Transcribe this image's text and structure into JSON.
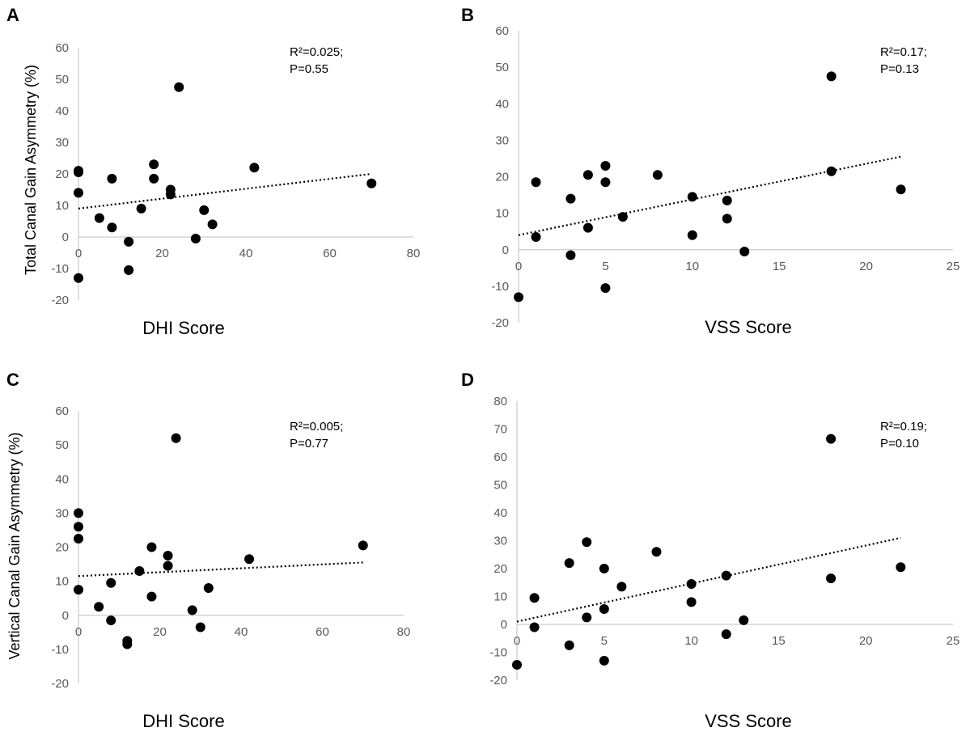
{
  "chart_data": [
    {
      "type": "scatter",
      "panel": "A",
      "xlabel": "DHI Score",
      "ylabel": "Total Canal Gain Asymmetry (%)",
      "xlim": [
        0,
        80
      ],
      "ylim": [
        -20,
        60
      ],
      "xticks": [
        0,
        20,
        40,
        60,
        80
      ],
      "yticks": [
        -20,
        -10,
        0,
        10,
        20,
        30,
        40,
        50,
        60
      ],
      "annotation": [
        "R²=0.025;",
        "P=0.55"
      ],
      "points": [
        {
          "x": 0,
          "y": 21
        },
        {
          "x": 0,
          "y": 20.5
        },
        {
          "x": 0,
          "y": 14
        },
        {
          "x": 0,
          "y": -13
        },
        {
          "x": 5,
          "y": 6
        },
        {
          "x": 8,
          "y": 18.5
        },
        {
          "x": 8,
          "y": 3
        },
        {
          "x": 12,
          "y": -1.5
        },
        {
          "x": 12,
          "y": -10.5
        },
        {
          "x": 15,
          "y": 9
        },
        {
          "x": 18,
          "y": 23
        },
        {
          "x": 18,
          "y": 18.5
        },
        {
          "x": 22,
          "y": 15
        },
        {
          "x": 22,
          "y": 13.5
        },
        {
          "x": 24,
          "y": 47.5
        },
        {
          "x": 28,
          "y": -0.5
        },
        {
          "x": 30,
          "y": 8.5
        },
        {
          "x": 32,
          "y": 4
        },
        {
          "x": 42,
          "y": 22
        },
        {
          "x": 70,
          "y": 17
        }
      ],
      "trendline": {
        "x": [
          0,
          70
        ],
        "y": [
          9,
          20
        ]
      }
    },
    {
      "type": "scatter",
      "panel": "B",
      "xlabel": "VSS Score",
      "ylabel": "",
      "xlim": [
        0,
        25
      ],
      "ylim": [
        -20,
        60
      ],
      "xticks": [
        0,
        5,
        10,
        15,
        20,
        25
      ],
      "yticks": [
        -20,
        -10,
        0,
        10,
        20,
        30,
        40,
        50,
        60
      ],
      "annotation": [
        "R²=0.17;",
        "P=0.13"
      ],
      "points": [
        {
          "x": 0,
          "y": -13
        },
        {
          "x": 1,
          "y": 18.5
        },
        {
          "x": 1,
          "y": 3.5
        },
        {
          "x": 3,
          "y": 14
        },
        {
          "x": 3,
          "y": -1.5
        },
        {
          "x": 4,
          "y": 20.5
        },
        {
          "x": 4,
          "y": 6
        },
        {
          "x": 5,
          "y": 23
        },
        {
          "x": 5,
          "y": 18.5
        },
        {
          "x": 5,
          "y": -10.5
        },
        {
          "x": 6,
          "y": 9
        },
        {
          "x": 8,
          "y": 20.5
        },
        {
          "x": 10,
          "y": 14.5
        },
        {
          "x": 10,
          "y": 4
        },
        {
          "x": 12,
          "y": 13.5
        },
        {
          "x": 12,
          "y": 8.5
        },
        {
          "x": 13,
          "y": -0.5
        },
        {
          "x": 18,
          "y": 47.5
        },
        {
          "x": 18,
          "y": 21.5
        },
        {
          "x": 22,
          "y": 16.5
        }
      ],
      "trendline": {
        "x": [
          0,
          22
        ],
        "y": [
          4,
          25.5
        ]
      }
    },
    {
      "type": "scatter",
      "panel": "C",
      "xlabel": "DHI Score",
      "ylabel": "Vertical Canal Gain Asymmetry (%)",
      "xlim": [
        0,
        80
      ],
      "ylim": [
        -20,
        60
      ],
      "xticks": [
        0,
        20,
        40,
        60,
        80
      ],
      "yticks": [
        -20,
        -10,
        0,
        10,
        20,
        30,
        40,
        50,
        60
      ],
      "annotation": [
        "R²=0.005;",
        "P=0.77"
      ],
      "points": [
        {
          "x": 0,
          "y": 30
        },
        {
          "x": 0,
          "y": 26
        },
        {
          "x": 0,
          "y": 22.5
        },
        {
          "x": 0,
          "y": 7.5
        },
        {
          "x": 5,
          "y": 2.5
        },
        {
          "x": 8,
          "y": 9.5
        },
        {
          "x": 8,
          "y": -1.5
        },
        {
          "x": 12,
          "y": -7.5
        },
        {
          "x": 12,
          "y": -8.5
        },
        {
          "x": 15,
          "y": 13
        },
        {
          "x": 18,
          "y": 20
        },
        {
          "x": 18,
          "y": 5.5
        },
        {
          "x": 22,
          "y": 17.5
        },
        {
          "x": 22,
          "y": 14.5
        },
        {
          "x": 24,
          "y": 52
        },
        {
          "x": 28,
          "y": 1.5
        },
        {
          "x": 30,
          "y": -3.5
        },
        {
          "x": 32,
          "y": 8
        },
        {
          "x": 42,
          "y": 16.5
        },
        {
          "x": 70,
          "y": 20.5
        }
      ],
      "trendline": {
        "x": [
          0,
          70
        ],
        "y": [
          11.5,
          15.5
        ]
      }
    },
    {
      "type": "scatter",
      "panel": "D",
      "xlabel": "VSS Score",
      "ylabel": "",
      "xlim": [
        0,
        25
      ],
      "ylim": [
        -20,
        80
      ],
      "xticks": [
        0,
        5,
        10,
        15,
        20,
        25
      ],
      "yticks": [
        -20,
        -10,
        0,
        10,
        20,
        30,
        40,
        50,
        60,
        70,
        80
      ],
      "annotation": [
        "R²=0.19;",
        "P=0.10"
      ],
      "points": [
        {
          "x": 0,
          "y": -14.5
        },
        {
          "x": 1,
          "y": 9.5
        },
        {
          "x": 1,
          "y": -1
        },
        {
          "x": 3,
          "y": 22
        },
        {
          "x": 3,
          "y": -7.5
        },
        {
          "x": 4,
          "y": 29.5
        },
        {
          "x": 4,
          "y": 2.5
        },
        {
          "x": 5,
          "y": 20
        },
        {
          "x": 5,
          "y": 5.5
        },
        {
          "x": 5,
          "y": -13
        },
        {
          "x": 6,
          "y": 13.5
        },
        {
          "x": 8,
          "y": 26
        },
        {
          "x": 10,
          "y": 14.5
        },
        {
          "x": 10,
          "y": 8
        },
        {
          "x": 12,
          "y": 17.5
        },
        {
          "x": 12,
          "y": -3.5
        },
        {
          "x": 13,
          "y": 1.5
        },
        {
          "x": 18,
          "y": 66.5
        },
        {
          "x": 18,
          "y": 16.5
        },
        {
          "x": 22,
          "y": 20.5
        }
      ],
      "trendline": {
        "x": [
          0,
          22
        ],
        "y": [
          1,
          31
        ]
      }
    }
  ]
}
